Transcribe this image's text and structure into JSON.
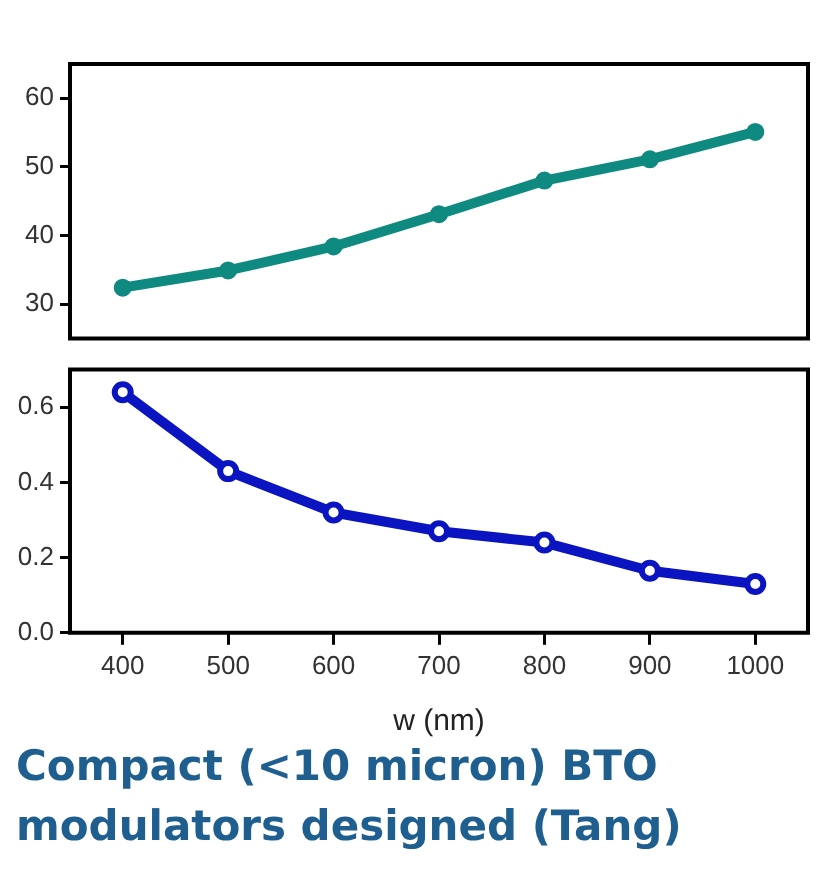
{
  "chart_data": [
    {
      "type": "line",
      "x": [
        400,
        500,
        600,
        700,
        800,
        900,
        1000
      ],
      "series": [
        {
          "color": "#0e8a80",
          "values": [
            32.4,
            34.9,
            38.4,
            43.1,
            48,
            51.1,
            55.1
          ]
        }
      ],
      "xlim": [
        350,
        1050
      ],
      "ylim": [
        25,
        65
      ],
      "yticks": [
        30,
        40,
        50,
        60
      ],
      "marker": "circle",
      "line_style": "solid",
      "grid": false,
      "legend": false,
      "tick_labels": "y"
    },
    {
      "type": "line",
      "x": [
        400,
        500,
        600,
        700,
        800,
        900,
        1000
      ],
      "series": [
        {
          "color": "#0a14c0",
          "values": [
            0.64,
            0.43,
            0.32,
            0.27,
            0.24,
            0.165,
            0.13
          ]
        }
      ],
      "xlim": [
        350,
        1050
      ],
      "xticks": [
        400,
        500,
        600,
        700,
        800,
        900,
        1000
      ],
      "ylim": [
        0,
        0.7
      ],
      "yticks": [
        {
          "value": 0,
          "label": "0.0"
        },
        0.2,
        0.4,
        0.6
      ],
      "xlabel": "w (nm)",
      "marker": "circle",
      "line_style": "solid",
      "grid": false,
      "legend": false,
      "annotations": [
        "Compact (<10 micron) BTO modulators designed (Tang)"
      ]
    }
  ]
}
